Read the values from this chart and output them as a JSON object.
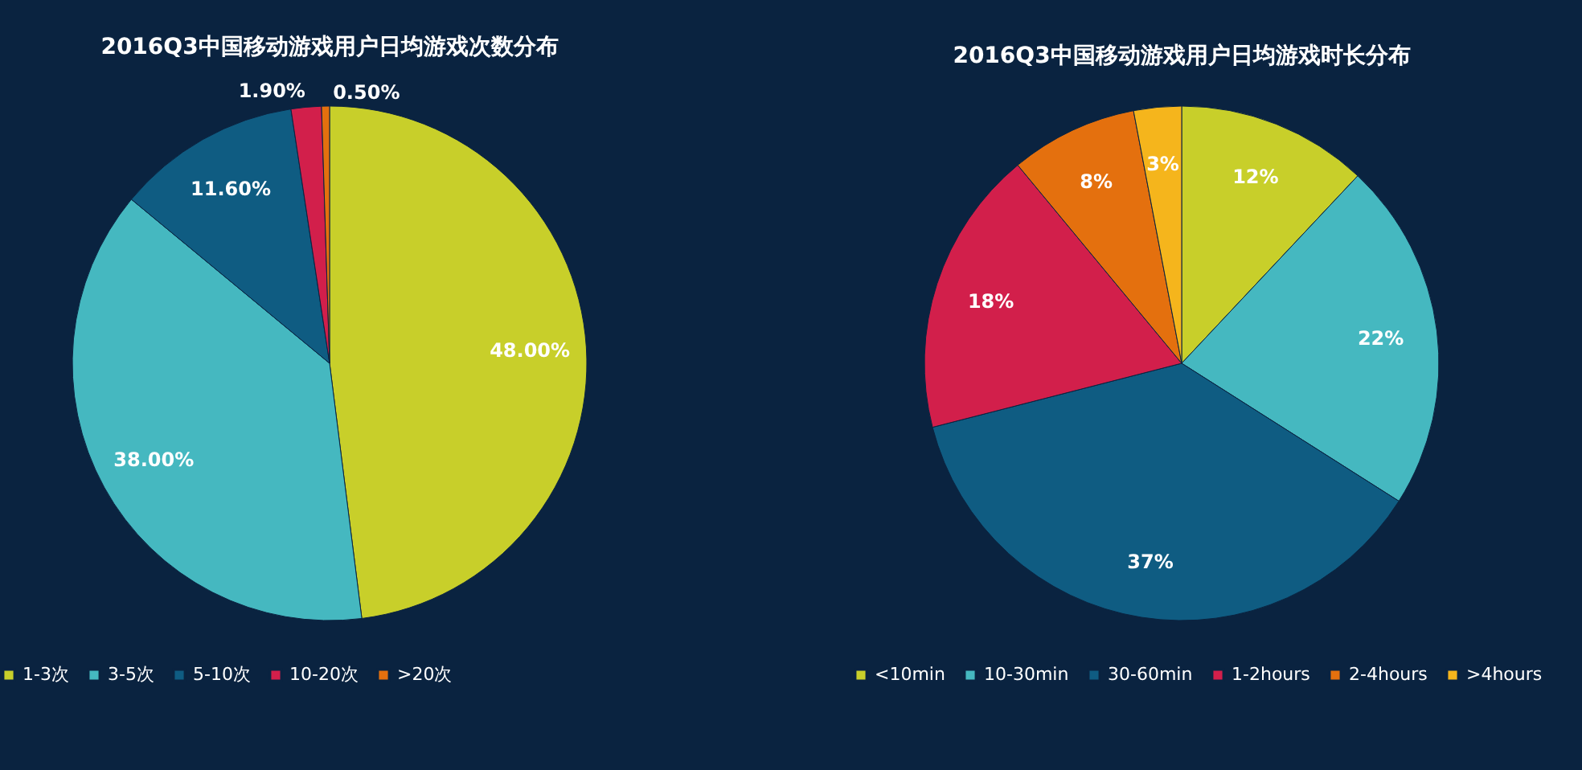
{
  "chart_data": [
    {
      "type": "pie",
      "title": "2016Q3中国移动游戏用户日均游戏次数分布",
      "categories": [
        "1-3次",
        "3-5次",
        "5-10次",
        "10-20次",
        ">20次"
      ],
      "values": [
        48,
        38,
        11.6,
        1.9,
        0.5
      ],
      "value_labels": [
        "48.00%",
        "38.00%",
        "11.60%",
        "1.90%",
        "0.50%"
      ],
      "colors": [
        "#c8cf2a",
        "#45b8c0",
        "#0f5c82",
        "#d21f4b",
        "#e4700e"
      ],
      "legend": "bottom"
    },
    {
      "type": "pie",
      "title": "2016Q3中国移动游戏用户日均游戏时长分布",
      "categories": [
        "<10min",
        "10-30min",
        "30-60min",
        "1-2hours",
        "2-4hours",
        ">4hours"
      ],
      "values": [
        12,
        22,
        37,
        18,
        8,
        3
      ],
      "value_labels": [
        "12%",
        "22%",
        "37%",
        "18%",
        "8%",
        "3%"
      ],
      "colors": [
        "#c8cf2a",
        "#45b8c0",
        "#0f5c82",
        "#d21f4b",
        "#e4700e",
        "#f5b51c"
      ],
      "legend": "bottom"
    }
  ]
}
